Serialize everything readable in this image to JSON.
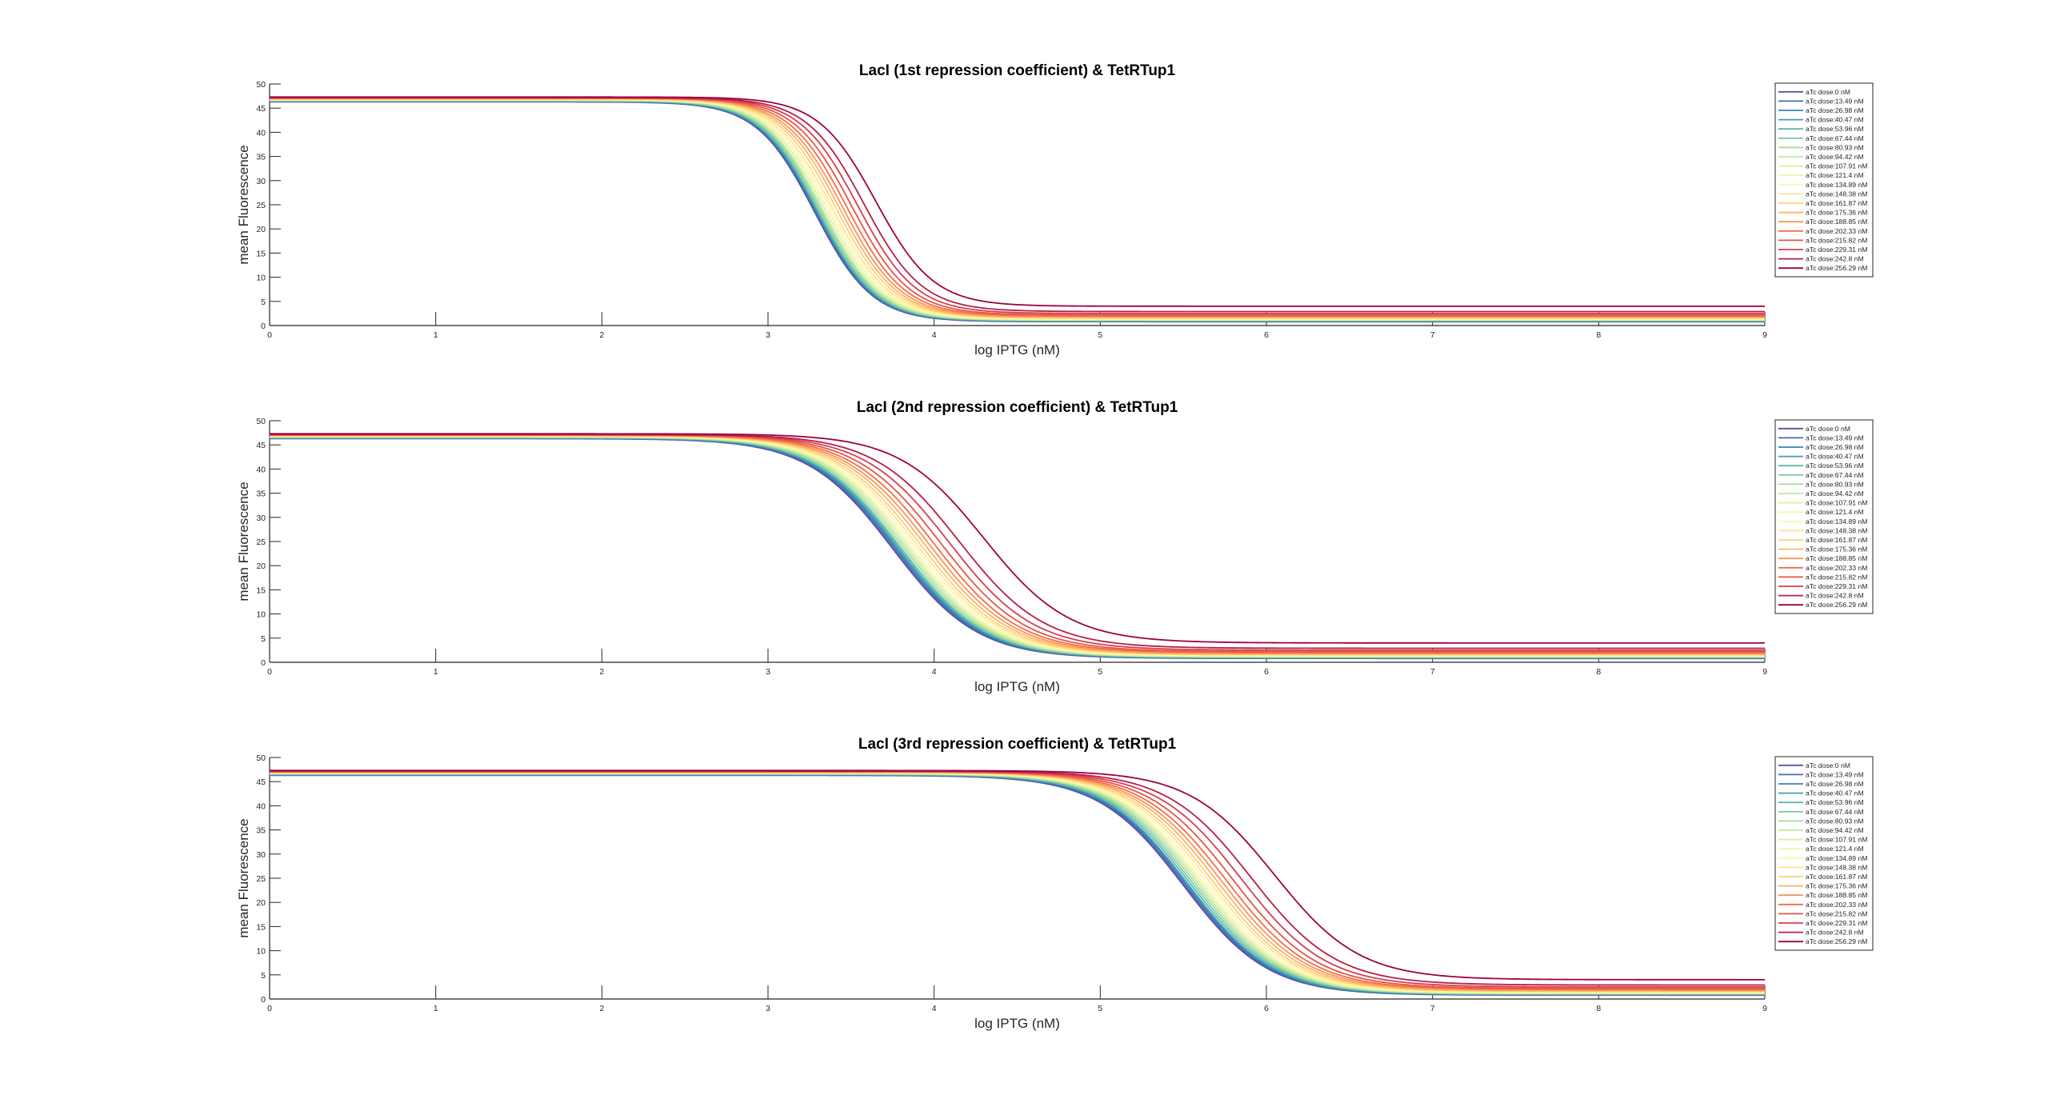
{
  "figure": {
    "background": "#ffffff"
  },
  "legend_labels": [
    "aTc dose:0 nM",
    "aTc dose:13.49 nM",
    "aTc dose:26.98 nM",
    "aTc dose:40.47 nM",
    "aTc dose:53.96 nM",
    "aTc dose:67.44 nM",
    "aTc dose:80.93 nM",
    "aTc dose:94.42 nM",
    "aTc dose:107.91 nM",
    "aTc dose:121.4 nM",
    "aTc dose:134.89 nM",
    "aTc dose:148.38 nM",
    "aTc dose:161.87 nM",
    "aTc dose:175.36 nM",
    "aTc dose:188.85 nM",
    "aTc dose:202.33 nM",
    "aTc dose:215.82 nM",
    "aTc dose:229.31 nM",
    "aTc dose:242.8 nM",
    "aTc dose:256.29 nM"
  ],
  "series_colors": [
    "#5e4fa2",
    "#4a68ae",
    "#3682ba",
    "#439bb5",
    "#5cb7a9",
    "#7ecba4",
    "#a0d9a3",
    "#c0e6a1",
    "#dcf09b",
    "#f0f8a9",
    "#fff5ae",
    "#fee593",
    "#fdcf7c",
    "#fcb366",
    "#f99555",
    "#f46d43",
    "#e45549",
    "#d53e4f",
    "#b81e48",
    "#9e0142"
  ],
  "chart_data": [
    {
      "type": "line",
      "title": "LacI (1st repression coefficient) & TetRTup1",
      "xlabel": "log IPTG (nM)",
      "ylabel": "mean Fluorescence",
      "xlim": [
        0,
        9
      ],
      "ylim": [
        0,
        50
      ],
      "xticks": [
        0,
        1,
        2,
        3,
        4,
        5,
        6,
        7,
        8,
        9
      ],
      "yticks": [
        0,
        5,
        10,
        15,
        20,
        25,
        30,
        35,
        40,
        45,
        50
      ],
      "grid": false,
      "legend_position": "top-right",
      "model": "y = low + (high - low) / (1 + 10^(n*(x - midpoint)))",
      "series": [
        {
          "name": "aTc dose:0 nM",
          "high": 46.3,
          "low": 0.8,
          "midpoint": 3.28,
          "n": 2.5
        },
        {
          "name": "aTc dose:13.49 nM",
          "high": 46.35,
          "low": 0.85,
          "midpoint": 3.285,
          "n": 2.5
        },
        {
          "name": "aTc dose:26.98 nM",
          "high": 46.4,
          "low": 0.9,
          "midpoint": 3.29,
          "n": 2.5
        },
        {
          "name": "aTc dose:40.47 nM",
          "high": 46.45,
          "low": 0.95,
          "midpoint": 3.295,
          "n": 2.5
        },
        {
          "name": "aTc dose:53.96 nM",
          "high": 46.5,
          "low": 1.0,
          "midpoint": 3.3,
          "n": 2.5
        },
        {
          "name": "aTc dose:67.44 nM",
          "high": 46.55,
          "low": 1.05,
          "midpoint": 3.31,
          "n": 2.5
        },
        {
          "name": "aTc dose:80.93 nM",
          "high": 46.6,
          "low": 1.1,
          "midpoint": 3.32,
          "n": 2.5
        },
        {
          "name": "aTc dose:94.42 nM",
          "high": 46.65,
          "low": 1.15,
          "midpoint": 3.33,
          "n": 2.5
        },
        {
          "name": "aTc dose:107.91 nM",
          "high": 46.7,
          "low": 1.2,
          "midpoint": 3.345,
          "n": 2.5
        },
        {
          "name": "aTc dose:121.4 nM",
          "high": 46.75,
          "low": 1.3,
          "midpoint": 3.36,
          "n": 2.5
        },
        {
          "name": "aTc dose:134.89 nM",
          "high": 46.8,
          "low": 1.4,
          "midpoint": 3.375,
          "n": 2.5
        },
        {
          "name": "aTc dose:148.38 nM",
          "high": 46.85,
          "low": 1.5,
          "midpoint": 3.39,
          "n": 2.5
        },
        {
          "name": "aTc dose:161.87 nM",
          "high": 46.9,
          "low": 1.6,
          "midpoint": 3.41,
          "n": 2.5
        },
        {
          "name": "aTc dose:175.36 nM",
          "high": 46.95,
          "low": 1.7,
          "midpoint": 3.43,
          "n": 2.5
        },
        {
          "name": "aTc dose:188.85 nM",
          "high": 47.0,
          "low": 1.85,
          "midpoint": 3.45,
          "n": 2.5
        },
        {
          "name": "aTc dose:202.33 nM",
          "high": 47.05,
          "low": 2.0,
          "midpoint": 3.475,
          "n": 2.5
        },
        {
          "name": "aTc dose:215.82 nM",
          "high": 47.1,
          "low": 2.2,
          "midpoint": 3.505,
          "n": 2.5
        },
        {
          "name": "aTc dose:229.31 nM",
          "high": 47.15,
          "low": 2.5,
          "midpoint": 3.54,
          "n": 2.5
        },
        {
          "name": "aTc dose:242.8 nM",
          "high": 47.2,
          "low": 2.9,
          "midpoint": 3.58,
          "n": 2.5
        },
        {
          "name": "aTc dose:256.29 nM",
          "high": 47.3,
          "low": 4.0,
          "midpoint": 3.65,
          "n": 2.5
        }
      ]
    },
    {
      "type": "line",
      "title": "LacI (2nd repression coefficient) & TetRTup1",
      "xlabel": "log IPTG (nM)",
      "ylabel": "mean Fluorescence",
      "xlim": [
        0,
        9
      ],
      "ylim": [
        0,
        50
      ],
      "xticks": [
        0,
        1,
        2,
        3,
        4,
        5,
        6,
        7,
        8,
        9
      ],
      "yticks": [
        0,
        5,
        10,
        15,
        20,
        25,
        30,
        35,
        40,
        45,
        50
      ],
      "grid": false,
      "legend_position": "top-right",
      "model": "y = low + (high - low) / (1 + 10^(n*(x - midpoint)))",
      "series": [
        {
          "name": "aTc dose:0 nM",
          "high": 46.3,
          "low": 0.8,
          "midpoint": 3.75,
          "n": 1.7
        },
        {
          "name": "aTc dose:13.49 nM",
          "high": 46.35,
          "low": 0.85,
          "midpoint": 3.76,
          "n": 1.7
        },
        {
          "name": "aTc dose:26.98 nM",
          "high": 46.4,
          "low": 0.9,
          "midpoint": 3.77,
          "n": 1.7
        },
        {
          "name": "aTc dose:40.47 nM",
          "high": 46.45,
          "low": 0.95,
          "midpoint": 3.78,
          "n": 1.7
        },
        {
          "name": "aTc dose:53.96 nM",
          "high": 46.5,
          "low": 1.0,
          "midpoint": 3.79,
          "n": 1.7
        },
        {
          "name": "aTc dose:67.44 nM",
          "high": 46.55,
          "low": 1.05,
          "midpoint": 3.8,
          "n": 1.7
        },
        {
          "name": "aTc dose:80.93 nM",
          "high": 46.6,
          "low": 1.1,
          "midpoint": 3.815,
          "n": 1.7
        },
        {
          "name": "aTc dose:94.42 nM",
          "high": 46.65,
          "low": 1.15,
          "midpoint": 3.83,
          "n": 1.7
        },
        {
          "name": "aTc dose:107.91 nM",
          "high": 46.7,
          "low": 1.2,
          "midpoint": 3.845,
          "n": 1.7
        },
        {
          "name": "aTc dose:121.4 nM",
          "high": 46.75,
          "low": 1.3,
          "midpoint": 3.86,
          "n": 1.7
        },
        {
          "name": "aTc dose:134.89 nM",
          "high": 46.8,
          "low": 1.4,
          "midpoint": 3.88,
          "n": 1.7
        },
        {
          "name": "aTc dose:148.38 nM",
          "high": 46.85,
          "low": 1.5,
          "midpoint": 3.9,
          "n": 1.7
        },
        {
          "name": "aTc dose:161.87 nM",
          "high": 46.9,
          "low": 1.6,
          "midpoint": 3.92,
          "n": 1.7
        },
        {
          "name": "aTc dose:175.36 nM",
          "high": 46.95,
          "low": 1.7,
          "midpoint": 3.945,
          "n": 1.7
        },
        {
          "name": "aTc dose:188.85 nM",
          "high": 47.0,
          "low": 1.85,
          "midpoint": 3.97,
          "n": 1.7
        },
        {
          "name": "aTc dose:202.33 nM",
          "high": 47.05,
          "low": 2.0,
          "midpoint": 4.0,
          "n": 1.7
        },
        {
          "name": "aTc dose:215.82 nM",
          "high": 47.1,
          "low": 2.2,
          "midpoint": 4.04,
          "n": 1.7
        },
        {
          "name": "aTc dose:229.31 nM",
          "high": 47.15,
          "low": 2.5,
          "midpoint": 4.09,
          "n": 1.7
        },
        {
          "name": "aTc dose:242.8 nM",
          "high": 47.2,
          "low": 2.9,
          "midpoint": 4.15,
          "n": 1.7
        },
        {
          "name": "aTc dose:256.29 nM",
          "high": 47.3,
          "low": 4.0,
          "midpoint": 4.3,
          "n": 1.7
        }
      ]
    },
    {
      "type": "line",
      "title": "LacI (3rd repression coefficient) & TetRTup1",
      "xlabel": "log IPTG (nM)",
      "ylabel": "mean Fluorescence",
      "xlim": [
        0,
        9
      ],
      "ylim": [
        0,
        50
      ],
      "xticks": [
        0,
        1,
        2,
        3,
        4,
        5,
        6,
        7,
        8,
        9
      ],
      "yticks": [
        0,
        5,
        10,
        15,
        20,
        25,
        30,
        35,
        40,
        45,
        50
      ],
      "grid": false,
      "legend_position": "top-right",
      "model": "y = low + (high - low) / (1 + 10^(n*(x - midpoint)))",
      "series": [
        {
          "name": "aTc dose:0 nM",
          "high": 46.3,
          "low": 0.8,
          "midpoint": 5.5,
          "n": 1.7
        },
        {
          "name": "aTc dose:13.49 nM",
          "high": 46.35,
          "low": 0.85,
          "midpoint": 5.51,
          "n": 1.7
        },
        {
          "name": "aTc dose:26.98 nM",
          "high": 46.4,
          "low": 0.9,
          "midpoint": 5.52,
          "n": 1.7
        },
        {
          "name": "aTc dose:40.47 nM",
          "high": 46.45,
          "low": 0.95,
          "midpoint": 5.53,
          "n": 1.7
        },
        {
          "name": "aTc dose:53.96 nM",
          "high": 46.5,
          "low": 1.0,
          "midpoint": 5.545,
          "n": 1.7
        },
        {
          "name": "aTc dose:67.44 nM",
          "high": 46.55,
          "low": 1.05,
          "midpoint": 5.56,
          "n": 1.7
        },
        {
          "name": "aTc dose:80.93 nM",
          "high": 46.6,
          "low": 1.1,
          "midpoint": 5.575,
          "n": 1.7
        },
        {
          "name": "aTc dose:94.42 nM",
          "high": 46.65,
          "low": 1.15,
          "midpoint": 5.59,
          "n": 1.7
        },
        {
          "name": "aTc dose:107.91 nM",
          "high": 46.7,
          "low": 1.2,
          "midpoint": 5.605,
          "n": 1.7
        },
        {
          "name": "aTc dose:121.4 nM",
          "high": 46.75,
          "low": 1.3,
          "midpoint": 5.62,
          "n": 1.7
        },
        {
          "name": "aTc dose:134.89 nM",
          "high": 46.8,
          "low": 1.4,
          "midpoint": 5.64,
          "n": 1.7
        },
        {
          "name": "aTc dose:148.38 nM",
          "high": 46.85,
          "low": 1.5,
          "midpoint": 5.66,
          "n": 1.7
        },
        {
          "name": "aTc dose:161.87 nM",
          "high": 46.9,
          "low": 1.6,
          "midpoint": 5.68,
          "n": 1.7
        },
        {
          "name": "aTc dose:175.36 nM",
          "high": 46.95,
          "low": 1.7,
          "midpoint": 5.705,
          "n": 1.7
        },
        {
          "name": "aTc dose:188.85 nM",
          "high": 47.0,
          "low": 1.85,
          "midpoint": 5.73,
          "n": 1.7
        },
        {
          "name": "aTc dose:202.33 nM",
          "high": 47.05,
          "low": 2.0,
          "midpoint": 5.76,
          "n": 1.7
        },
        {
          "name": "aTc dose:215.82 nM",
          "high": 47.1,
          "low": 2.2,
          "midpoint": 5.8,
          "n": 1.7
        },
        {
          "name": "aTc dose:229.31 nM",
          "high": 47.15,
          "low": 2.5,
          "midpoint": 5.85,
          "n": 1.7
        },
        {
          "name": "aTc dose:242.8 nM",
          "high": 47.2,
          "low": 2.9,
          "midpoint": 5.91,
          "n": 1.7
        },
        {
          "name": "aTc dose:256.29 nM",
          "high": 47.3,
          "low": 4.0,
          "midpoint": 6.05,
          "n": 1.7
        }
      ]
    }
  ]
}
